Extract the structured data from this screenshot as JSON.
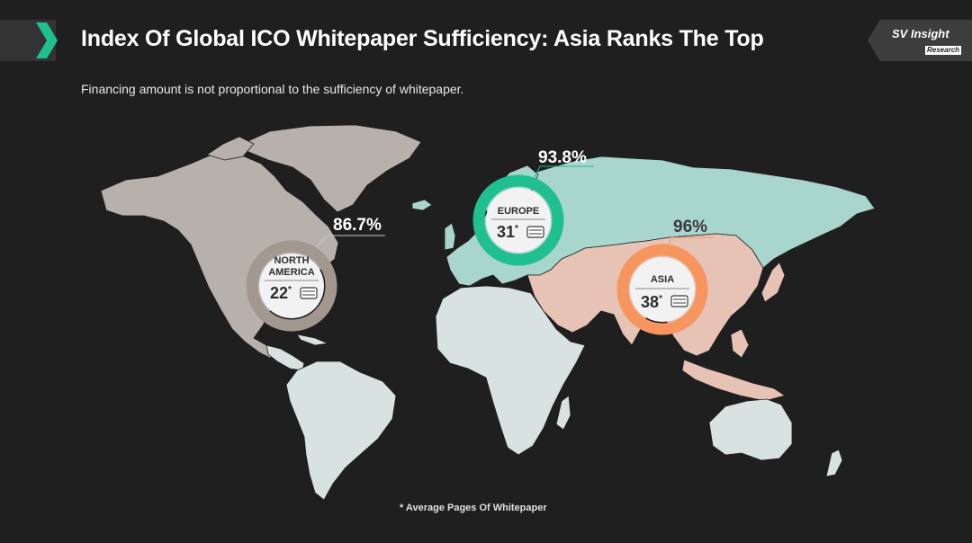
{
  "header": {
    "title": "Index Of Global ICO Whitepaper Sufficiency: Asia Ranks The Top",
    "subtitle": "Financing amount is not proportional to the sufficiency of whitepaper."
  },
  "brand": {
    "name": "SV Insight",
    "sub": "Research"
  },
  "regions": {
    "north_america": {
      "name_line1": "NORTH",
      "name_line2": "AMERICA",
      "sufficiency": "86.7%",
      "avg_pages": "22",
      "color": "#a39890"
    },
    "europe": {
      "name": "EUROPE",
      "sufficiency": "93.8%",
      "avg_pages": "31",
      "color": "#1fbf8f"
    },
    "asia": {
      "name": "ASIA",
      "sufficiency": "96%",
      "avg_pages": "38",
      "color": "#f7955f"
    }
  },
  "footnote": "* Average Pages Of Whitepaper",
  "colors": {
    "background": "#1f1f1f",
    "north_america_land": "#b7b0ab",
    "europe_russia_land": "#a9d6cc",
    "asia_land": "#e6c3b4",
    "other_land": "#d8e3e1"
  }
}
